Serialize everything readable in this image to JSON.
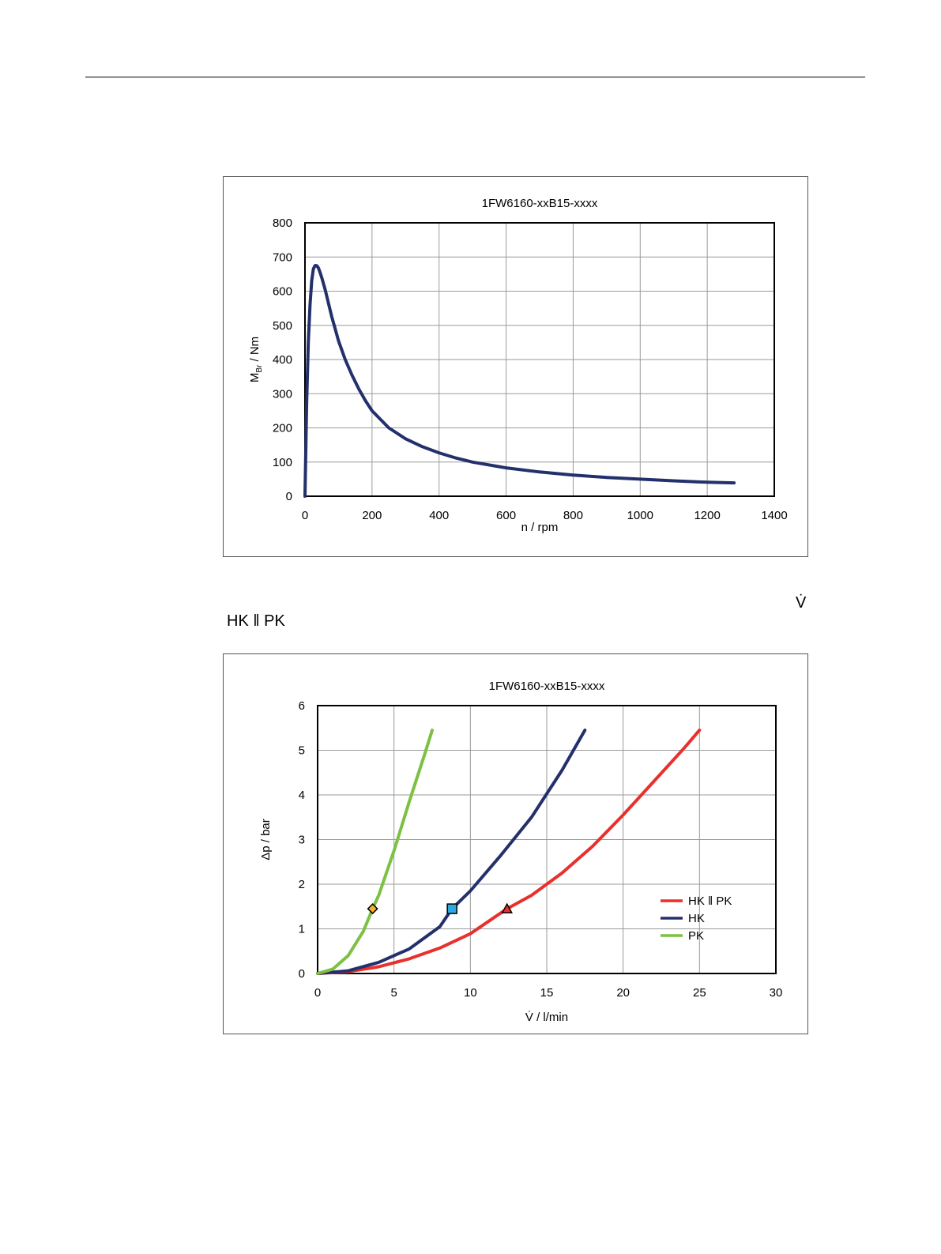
{
  "header": {},
  "vdot_symbol": "V̇",
  "section_label": "HK ‖ PK",
  "chart_data": [
    {
      "type": "line",
      "title": "1FW6160-xxB15-xxxx",
      "xlabel": "n / rpm",
      "ylabel_main": "M",
      "ylabel_sub": "Br",
      "ylabel_rest": " / Nm",
      "xlim": [
        0,
        1400
      ],
      "ylim": [
        0,
        800
      ],
      "xticks": [
        0,
        200,
        400,
        600,
        800,
        1000,
        1200,
        1400
      ],
      "yticks": [
        0,
        100,
        200,
        300,
        400,
        500,
        600,
        700,
        800
      ],
      "grid": true,
      "legend": "none",
      "series": [
        {
          "color": "#23306b",
          "x": [
            0,
            5,
            10,
            15,
            20,
            25,
            30,
            35,
            40,
            45,
            50,
            60,
            70,
            80,
            90,
            100,
            120,
            140,
            160,
            180,
            200,
            250,
            300,
            350,
            400,
            450,
            500,
            600,
            700,
            800,
            900,
            1000,
            1100,
            1200,
            1280
          ],
          "y": [
            0,
            270,
            450,
            560,
            630,
            665,
            675,
            675,
            668,
            655,
            640,
            605,
            565,
            525,
            490,
            455,
            400,
            355,
            315,
            280,
            250,
            200,
            168,
            145,
            127,
            112,
            100,
            83,
            71,
            62,
            55,
            50,
            45,
            41,
            39
          ]
        }
      ]
    },
    {
      "type": "line",
      "title": "1FW6160-xxB15-xxxx",
      "xlabel": "V̇ / l/min",
      "ylabel": "Δp / bar",
      "xlim": [
        0,
        30
      ],
      "ylim": [
        0,
        6
      ],
      "xticks": [
        0,
        5,
        10,
        15,
        20,
        25,
        30
      ],
      "yticks": [
        0,
        1,
        2,
        3,
        4,
        5,
        6
      ],
      "grid": true,
      "legend": "center-right",
      "series": [
        {
          "name": "HK ‖ PK",
          "color": "#e8302c",
          "x": [
            0,
            2,
            4,
            6,
            8,
            10,
            12.4,
            14,
            16,
            18,
            20,
            22,
            24,
            25
          ],
          "y": [
            0,
            0.04,
            0.15,
            0.33,
            0.57,
            0.89,
            1.45,
            1.75,
            2.25,
            2.85,
            3.55,
            4.3,
            5.05,
            5.45
          ],
          "marker": {
            "shape": "triangle",
            "x": 12.4,
            "y": 1.45,
            "fill": "#e8302c"
          }
        },
        {
          "name": "HK",
          "color": "#23306b",
          "x": [
            0,
            2,
            4,
            6,
            8,
            8.8,
            10,
            12,
            14,
            16,
            17.5
          ],
          "y": [
            0,
            0.06,
            0.25,
            0.55,
            1.05,
            1.45,
            1.85,
            2.65,
            3.5,
            4.55,
            5.45
          ],
          "marker": {
            "shape": "square",
            "x": 8.8,
            "y": 1.45,
            "fill": "#2ba9e0"
          }
        },
        {
          "name": "PK",
          "color": "#7cc142",
          "x": [
            0,
            1,
            2,
            3,
            3.6,
            4,
            5,
            6,
            7,
            7.5
          ],
          "y": [
            0,
            0.1,
            0.4,
            0.95,
            1.45,
            1.75,
            2.75,
            3.85,
            4.9,
            5.45
          ],
          "marker": {
            "shape": "diamond",
            "x": 3.6,
            "y": 1.45,
            "fill": "#f3b229"
          }
        }
      ]
    }
  ]
}
